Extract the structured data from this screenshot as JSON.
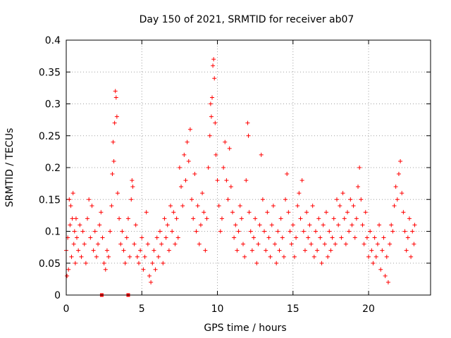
{
  "chart_data": {
    "type": "scatter",
    "title": "Day 150 of 2021, SRMTID for receiver ab07",
    "xlabel": "GPS time / hours",
    "ylabel": "SRMTID / TECUs",
    "xlim": [
      0,
      24.1
    ],
    "ylim": [
      0,
      0.4
    ],
    "xticks": [
      0,
      5,
      10,
      15,
      20
    ],
    "yticks": [
      0,
      0.05,
      0.1,
      0.15,
      0.2,
      0.25,
      0.3,
      0.35,
      0.4
    ],
    "xtick_labels": [
      "0",
      "5",
      "10",
      "15",
      "20"
    ],
    "ytick_labels": [
      "0",
      "0.05",
      "0.1",
      "0.15",
      "0.2",
      "0.25",
      "0.3",
      "0.35",
      "0.4"
    ],
    "grid": true,
    "marker": "plus",
    "color": "#ff0000",
    "series": [
      {
        "name": "SRMTID",
        "points": [
          [
            0.0,
            0.07
          ],
          [
            0.05,
            0.03
          ],
          [
            0.1,
            0.09
          ],
          [
            0.15,
            0.04
          ],
          [
            0.2,
            0.15
          ],
          [
            0.25,
            0.11
          ],
          [
            0.3,
            0.14
          ],
          [
            0.35,
            0.06
          ],
          [
            0.4,
            0.12
          ],
          [
            0.45,
            0.16
          ],
          [
            0.5,
            0.08
          ],
          [
            0.55,
            0.1
          ],
          [
            0.6,
            0.05
          ],
          [
            0.65,
            0.12
          ],
          [
            0.7,
            0.09
          ],
          [
            0.8,
            0.07
          ],
          [
            0.9,
            0.11
          ],
          [
            1.0,
            0.06
          ],
          [
            1.1,
            0.1
          ],
          [
            1.2,
            0.08
          ],
          [
            1.3,
            0.05
          ],
          [
            1.4,
            0.12
          ],
          [
            1.5,
            0.15
          ],
          [
            1.6,
            0.09
          ],
          [
            1.7,
            0.14
          ],
          [
            1.8,
            0.07
          ],
          [
            1.9,
            0.1
          ],
          [
            2.0,
            0.06
          ],
          [
            2.1,
            0.08
          ],
          [
            2.2,
            0.11
          ],
          [
            2.3,
            0.13
          ],
          [
            2.4,
            0.09
          ],
          [
            2.5,
            0.05
          ],
          [
            2.6,
            0.04
          ],
          [
            2.7,
            0.07
          ],
          [
            2.8,
            0.06
          ],
          [
            2.9,
            0.1
          ],
          [
            3.0,
            0.14
          ],
          [
            3.05,
            0.19
          ],
          [
            3.1,
            0.24
          ],
          [
            3.15,
            0.21
          ],
          [
            3.2,
            0.27
          ],
          [
            3.25,
            0.32
          ],
          [
            3.3,
            0.31
          ],
          [
            3.35,
            0.28
          ],
          [
            3.4,
            0.16
          ],
          [
            3.5,
            0.12
          ],
          [
            3.6,
            0.08
          ],
          [
            3.7,
            0.1
          ],
          [
            3.8,
            0.07
          ],
          [
            3.9,
            0.05
          ],
          [
            4.0,
            0.09
          ],
          [
            4.1,
            0.12
          ],
          [
            4.2,
            0.06
          ],
          [
            4.3,
            0.15
          ],
          [
            4.35,
            0.18
          ],
          [
            4.4,
            0.17
          ],
          [
            4.5,
            0.08
          ],
          [
            4.6,
            0.11
          ],
          [
            4.7,
            0.06
          ],
          [
            4.8,
            0.05
          ],
          [
            4.9,
            0.07
          ],
          [
            5.0,
            0.09
          ],
          [
            5.1,
            0.04
          ],
          [
            5.2,
            0.06
          ],
          [
            5.3,
            0.13
          ],
          [
            5.4,
            0.08
          ],
          [
            5.5,
            0.03
          ],
          [
            5.6,
            0.02
          ],
          [
            5.7,
            0.05
          ],
          [
            5.8,
            0.07
          ],
          [
            5.9,
            0.04
          ],
          [
            6.0,
            0.09
          ],
          [
            6.1,
            0.06
          ],
          [
            6.2,
            0.1
          ],
          [
            6.3,
            0.08
          ],
          [
            6.4,
            0.05
          ],
          [
            6.5,
            0.12
          ],
          [
            6.6,
            0.09
          ],
          [
            6.7,
            0.11
          ],
          [
            6.8,
            0.07
          ],
          [
            6.9,
            0.14
          ],
          [
            7.0,
            0.1
          ],
          [
            7.1,
            0.13
          ],
          [
            7.2,
            0.08
          ],
          [
            7.3,
            0.12
          ],
          [
            7.4,
            0.09
          ],
          [
            7.5,
            0.2
          ],
          [
            7.6,
            0.17
          ],
          [
            7.7,
            0.14
          ],
          [
            7.8,
            0.22
          ],
          [
            7.9,
            0.18
          ],
          [
            8.0,
            0.24
          ],
          [
            8.1,
            0.21
          ],
          [
            8.2,
            0.26
          ],
          [
            8.3,
            0.15
          ],
          [
            8.4,
            0.12
          ],
          [
            8.5,
            0.19
          ],
          [
            8.6,
            0.1
          ],
          [
            8.7,
            0.14
          ],
          [
            8.8,
            0.08
          ],
          [
            8.9,
            0.11
          ],
          [
            9.0,
            0.16
          ],
          [
            9.1,
            0.13
          ],
          [
            9.2,
            0.07
          ],
          [
            9.3,
            0.12
          ],
          [
            9.4,
            0.2
          ],
          [
            9.5,
            0.25
          ],
          [
            9.55,
            0.3
          ],
          [
            9.6,
            0.28
          ],
          [
            9.65,
            0.31
          ],
          [
            9.7,
            0.36
          ],
          [
            9.75,
            0.37
          ],
          [
            9.8,
            0.34
          ],
          [
            9.85,
            0.27
          ],
          [
            9.9,
            0.22
          ],
          [
            10.0,
            0.18
          ],
          [
            10.1,
            0.14
          ],
          [
            10.2,
            0.1
          ],
          [
            10.3,
            0.12
          ],
          [
            10.4,
            0.2
          ],
          [
            10.5,
            0.24
          ],
          [
            10.6,
            0.18
          ],
          [
            10.7,
            0.15
          ],
          [
            10.8,
            0.23
          ],
          [
            10.9,
            0.17
          ],
          [
            11.0,
            0.13
          ],
          [
            11.1,
            0.09
          ],
          [
            11.2,
            0.11
          ],
          [
            11.3,
            0.07
          ],
          [
            11.4,
            0.1
          ],
          [
            11.5,
            0.14
          ],
          [
            11.6,
            0.12
          ],
          [
            11.7,
            0.08
          ],
          [
            11.8,
            0.06
          ],
          [
            11.9,
            0.18
          ],
          [
            12.0,
            0.27
          ],
          [
            12.05,
            0.25
          ],
          [
            12.1,
            0.13
          ],
          [
            12.2,
            0.1
          ],
          [
            12.3,
            0.07
          ],
          [
            12.4,
            0.09
          ],
          [
            12.5,
            0.12
          ],
          [
            12.6,
            0.05
          ],
          [
            12.7,
            0.08
          ],
          [
            12.8,
            0.11
          ],
          [
            12.9,
            0.22
          ],
          [
            13.0,
            0.15
          ],
          [
            13.1,
            0.1
          ],
          [
            13.2,
            0.07
          ],
          [
            13.3,
            0.13
          ],
          [
            13.4,
            0.09
          ],
          [
            13.5,
            0.06
          ],
          [
            13.6,
            0.11
          ],
          [
            13.7,
            0.14
          ],
          [
            13.8,
            0.08
          ],
          [
            13.9,
            0.05
          ],
          [
            14.0,
            0.1
          ],
          [
            14.1,
            0.07
          ],
          [
            14.2,
            0.12
          ],
          [
            14.3,
            0.09
          ],
          [
            14.4,
            0.06
          ],
          [
            14.5,
            0.15
          ],
          [
            14.6,
            0.19
          ],
          [
            14.7,
            0.13
          ],
          [
            14.8,
            0.1
          ],
          [
            14.9,
            0.08
          ],
          [
            15.0,
            0.11
          ],
          [
            15.1,
            0.06
          ],
          [
            15.2,
            0.09
          ],
          [
            15.3,
            0.14
          ],
          [
            15.4,
            0.16
          ],
          [
            15.5,
            0.12
          ],
          [
            15.6,
            0.18
          ],
          [
            15.7,
            0.1
          ],
          [
            15.8,
            0.07
          ],
          [
            15.9,
            0.13
          ],
          [
            16.0,
            0.09
          ],
          [
            16.1,
            0.11
          ],
          [
            16.2,
            0.08
          ],
          [
            16.3,
            0.14
          ],
          [
            16.4,
            0.06
          ],
          [
            16.5,
            0.1
          ],
          [
            16.6,
            0.07
          ],
          [
            16.7,
            0.12
          ],
          [
            16.8,
            0.09
          ],
          [
            16.9,
            0.05
          ],
          [
            17.0,
            0.11
          ],
          [
            17.1,
            0.08
          ],
          [
            17.2,
            0.13
          ],
          [
            17.3,
            0.06
          ],
          [
            17.4,
            0.1
          ],
          [
            17.5,
            0.07
          ],
          [
            17.6,
            0.09
          ],
          [
            17.7,
            0.12
          ],
          [
            17.8,
            0.08
          ],
          [
            17.9,
            0.15
          ],
          [
            18.0,
            0.11
          ],
          [
            18.1,
            0.14
          ],
          [
            18.2,
            0.09
          ],
          [
            18.3,
            0.16
          ],
          [
            18.4,
            0.12
          ],
          [
            18.5,
            0.08
          ],
          [
            18.6,
            0.13
          ],
          [
            18.7,
            0.1
          ],
          [
            18.8,
            0.15
          ],
          [
            18.9,
            0.11
          ],
          [
            19.0,
            0.14
          ],
          [
            19.1,
            0.09
          ],
          [
            19.2,
            0.12
          ],
          [
            19.3,
            0.17
          ],
          [
            19.4,
            0.2
          ],
          [
            19.5,
            0.15
          ],
          [
            19.6,
            0.11
          ],
          [
            19.7,
            0.08
          ],
          [
            19.8,
            0.13
          ],
          [
            19.9,
            0.09
          ],
          [
            20.0,
            0.06
          ],
          [
            20.1,
            0.1
          ],
          [
            20.2,
            0.07
          ],
          [
            20.3,
            0.05
          ],
          [
            20.4,
            0.09
          ],
          [
            20.5,
            0.06
          ],
          [
            20.6,
            0.08
          ],
          [
            20.7,
            0.11
          ],
          [
            20.8,
            0.04
          ],
          [
            20.9,
            0.07
          ],
          [
            21.0,
            0.09
          ],
          [
            21.1,
            0.03
          ],
          [
            21.2,
            0.06
          ],
          [
            21.3,
            0.02
          ],
          [
            21.4,
            0.08
          ],
          [
            21.5,
            0.11
          ],
          [
            21.6,
            0.1
          ],
          [
            21.7,
            0.14
          ],
          [
            21.8,
            0.17
          ],
          [
            21.9,
            0.15
          ],
          [
            22.0,
            0.19
          ],
          [
            22.1,
            0.21
          ],
          [
            22.2,
            0.16
          ],
          [
            22.3,
            0.13
          ],
          [
            22.4,
            0.1
          ],
          [
            22.5,
            0.07
          ],
          [
            22.6,
            0.09
          ],
          [
            22.7,
            0.12
          ],
          [
            22.8,
            0.06
          ],
          [
            22.9,
            0.1
          ],
          [
            23.0,
            0.08
          ],
          [
            23.05,
            0.11
          ]
        ]
      }
    ],
    "outliers_at_zero": [
      2.35,
      4.1
    ]
  }
}
